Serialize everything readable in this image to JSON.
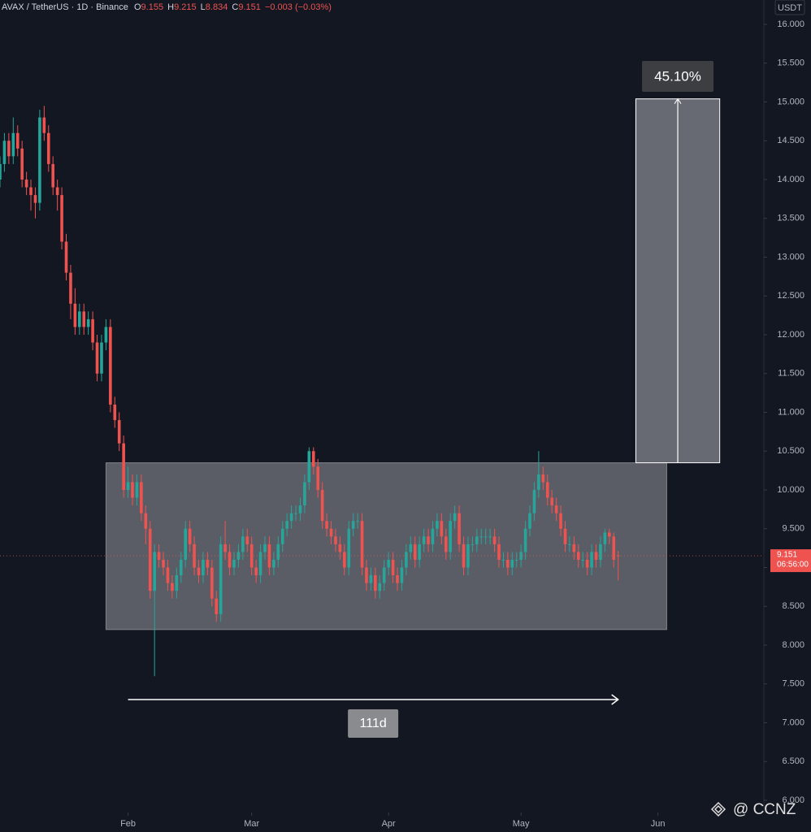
{
  "chart_data": {
    "type": "candlestick",
    "header": {
      "symbol": "AVAX / TetherUS · 1D · Binance",
      "prefixes": [
        "O",
        "H",
        "L",
        "C"
      ],
      "change": "−0.003 (−0.03%)"
    },
    "currency": "USDT",
    "countdown": "06:56:00",
    "watermark": "@ CCNZ",
    "up_color": "#26a69a",
    "down_color": "#ef5350",
    "xlim": [
      3,
      176
    ],
    "ylim": [
      6,
      16
    ],
    "xticks": [
      {
        "value": 32,
        "label": "Feb"
      },
      {
        "value": 60,
        "label": "Mar"
      },
      {
        "value": 91,
        "label": "Apr"
      },
      {
        "value": 121,
        "label": "May"
      },
      {
        "value": 152,
        "label": "Jun"
      }
    ],
    "yticks": [
      {
        "value": 6,
        "label": "6.000"
      },
      {
        "value": 6.5,
        "label": "6.500"
      },
      {
        "value": 7,
        "label": "7.000"
      },
      {
        "value": 7.5,
        "label": "7.500"
      },
      {
        "value": 8,
        "label": "8.000"
      },
      {
        "value": 8.5,
        "label": "8.500"
      },
      {
        "value": 9,
        "label": "9.000"
      },
      {
        "value": 9.5,
        "label": "9.500"
      },
      {
        "value": 10,
        "label": "10.000"
      },
      {
        "value": 10.5,
        "label": "10.500"
      },
      {
        "value": 11,
        "label": "11.000"
      },
      {
        "value": 11.5,
        "label": "11.500"
      },
      {
        "value": 12,
        "label": "12.000"
      },
      {
        "value": 12.5,
        "label": "12.500"
      },
      {
        "value": 13,
        "label": "13.000"
      },
      {
        "value": 13.5,
        "label": "13.500"
      },
      {
        "value": 14,
        "label": "14.000"
      },
      {
        "value": 14.5,
        "label": "14.500"
      },
      {
        "value": 15,
        "label": "15.000"
      },
      {
        "value": 15.5,
        "label": "15.500"
      },
      {
        "value": 16,
        "label": "16.000"
      }
    ],
    "x": [
      3,
      4,
      5,
      6,
      7,
      8,
      9,
      10,
      11,
      12,
      13,
      14,
      15,
      16,
      17,
      18,
      19,
      20,
      21,
      22,
      23,
      24,
      25,
      26,
      27,
      28,
      29,
      30,
      31,
      32,
      33,
      34,
      35,
      36,
      37,
      38,
      39,
      40,
      41,
      42,
      43,
      44,
      45,
      46,
      47,
      48,
      49,
      50,
      51,
      52,
      53,
      54,
      55,
      56,
      57,
      58,
      59,
      60,
      61,
      62,
      63,
      64,
      65,
      66,
      67,
      68,
      69,
      70,
      71,
      72,
      73,
      74,
      75,
      76,
      77,
      78,
      79,
      80,
      81,
      82,
      83,
      84,
      85,
      86,
      87,
      88,
      89,
      90,
      91,
      92,
      93,
      94,
      95,
      96,
      97,
      98,
      99,
      100,
      101,
      102,
      103,
      104,
      105,
      106,
      107,
      108,
      109,
      110,
      111,
      112,
      113,
      114,
      115,
      116,
      117,
      118,
      119,
      120,
      121,
      122,
      123,
      124,
      125,
      126,
      127,
      128,
      129,
      130,
      131,
      132,
      133,
      134,
      135,
      136,
      137,
      138,
      139,
      140,
      141,
      142,
      143
    ],
    "open": [
      14.0,
      14.2,
      14.5,
      14.3,
      14.6,
      14.4,
      14.0,
      13.9,
      13.8,
      13.7,
      14.8,
      14.6,
      14.2,
      13.9,
      13.8,
      13.2,
      12.8,
      12.4,
      12.1,
      12.3,
      12.1,
      12.2,
      11.9,
      11.5,
      11.9,
      12.1,
      11.1,
      10.9,
      10.6,
      10.0,
      10.1,
      9.9,
      10.1,
      9.7,
      9.5,
      8.7,
      9.2,
      9.1,
      9.0,
      8.8,
      8.7,
      8.9,
      9.1,
      9.5,
      9.3,
      9.0,
      8.9,
      9.1,
      9.0,
      8.6,
      8.4,
      9.3,
      9.2,
      9.0,
      9.1,
      9.2,
      9.4,
      9.3,
      9.0,
      8.9,
      9.2,
      9.3,
      9.0,
      9.1,
      9.3,
      9.5,
      9.6,
      9.7,
      9.7,
      9.8,
      10.1,
      10.5,
      10.3,
      10.0,
      9.6,
      9.5,
      9.4,
      9.3,
      9.2,
      9.0,
      9.5,
      9.6,
      9.6,
      9.0,
      8.8,
      8.9,
      8.7,
      8.8,
      9.0,
      9.1,
      8.9,
      8.8,
      9.0,
      9.2,
      9.3,
      9.1,
      9.3,
      9.4,
      9.3,
      9.5,
      9.6,
      9.4,
      9.2,
      9.6,
      9.7,
      9.3,
      9.0,
      9.3,
      9.3,
      9.4,
      9.4,
      9.4,
      9.4,
      9.3,
      9.1,
      9.1,
      9.0,
      9.1,
      9.1,
      9.2,
      9.5,
      9.7,
      10.0,
      10.2,
      10.1,
      9.9,
      9.8,
      9.7,
      9.5,
      9.3,
      9.3,
      9.2,
      9.1,
      9.1,
      9.0,
      9.2,
      9.1,
      9.3,
      9.45,
      9.4,
      9.155
    ],
    "high": [
      14.3,
      14.6,
      14.6,
      14.8,
      14.7,
      14.5,
      14.1,
      14.0,
      13.9,
      14.9,
      14.95,
      14.7,
      14.3,
      14.0,
      13.9,
      13.3,
      12.9,
      12.6,
      12.4,
      12.4,
      12.3,
      12.3,
      12.0,
      12.0,
      12.2,
      12.2,
      11.2,
      11.0,
      10.7,
      10.3,
      10.2,
      10.2,
      10.2,
      9.8,
      9.6,
      9.3,
      9.3,
      9.2,
      9.1,
      8.9,
      9.0,
      9.2,
      9.6,
      9.6,
      9.4,
      9.1,
      9.2,
      9.2,
      9.1,
      8.7,
      9.4,
      9.6,
      9.3,
      9.2,
      9.3,
      9.5,
      9.5,
      9.4,
      9.1,
      9.3,
      9.4,
      9.4,
      9.2,
      9.4,
      9.6,
      9.7,
      9.8,
      9.8,
      9.9,
      10.2,
      10.55,
      10.55,
      10.4,
      10.1,
      9.7,
      9.6,
      9.5,
      9.4,
      9.3,
      9.6,
      9.7,
      9.7,
      9.7,
      9.1,
      9.0,
      9.0,
      8.9,
      9.1,
      9.2,
      9.2,
      9.0,
      9.1,
      9.3,
      9.4,
      9.4,
      9.4,
      9.5,
      9.5,
      9.6,
      9.7,
      9.7,
      9.5,
      9.7,
      9.8,
      9.8,
      9.4,
      9.4,
      9.4,
      9.5,
      9.5,
      9.5,
      9.5,
      9.5,
      9.4,
      9.2,
      9.2,
      9.2,
      9.2,
      9.3,
      9.6,
      9.8,
      10.1,
      10.5,
      10.3,
      10.2,
      10.0,
      9.9,
      9.8,
      9.6,
      9.4,
      9.4,
      9.3,
      9.2,
      9.2,
      9.3,
      9.3,
      9.4,
      9.5,
      9.5,
      9.45,
      9.215
    ],
    "low": [
      13.9,
      14.1,
      14.2,
      14.2,
      14.3,
      13.9,
      13.8,
      13.6,
      13.5,
      13.6,
      14.5,
      14.1,
      13.8,
      13.6,
      13.1,
      12.7,
      12.2,
      12.0,
      12.0,
      12.0,
      12.0,
      11.8,
      11.4,
      11.4,
      11.8,
      11.0,
      10.8,
      10.5,
      9.9,
      9.9,
      9.8,
      9.8,
      9.6,
      9.3,
      8.6,
      7.6,
      9.0,
      8.9,
      8.7,
      8.6,
      8.6,
      8.8,
      9.0,
      9.2,
      8.9,
      8.8,
      8.8,
      8.9,
      8.5,
      8.3,
      8.3,
      9.1,
      8.9,
      8.9,
      9.0,
      9.1,
      9.2,
      8.9,
      8.8,
      8.8,
      9.1,
      8.9,
      8.9,
      9.0,
      9.2,
      9.4,
      9.5,
      9.6,
      9.6,
      9.7,
      10.0,
      10.2,
      9.9,
      9.5,
      9.4,
      9.3,
      9.2,
      9.1,
      8.9,
      8.9,
      9.4,
      9.5,
      8.9,
      8.7,
      8.7,
      8.6,
      8.6,
      8.7,
      8.9,
      8.8,
      8.7,
      8.7,
      8.9,
      9.1,
      9.0,
      9.0,
      9.2,
      9.2,
      9.2,
      9.4,
      9.3,
      9.1,
      9.1,
      9.5,
      9.2,
      8.9,
      8.9,
      9.2,
      9.2,
      9.3,
      9.3,
      9.3,
      9.2,
      9.0,
      9.0,
      8.9,
      8.9,
      9.0,
      9.0,
      9.1,
      9.4,
      9.6,
      9.9,
      10.0,
      9.8,
      9.7,
      9.6,
      9.4,
      9.2,
      9.2,
      9.1,
      9.0,
      9.0,
      8.9,
      8.9,
      9.0,
      9.0,
      9.2,
      9.3,
      9.0,
      8.834
    ],
    "close": [
      14.2,
      14.5,
      14.3,
      14.6,
      14.4,
      14.0,
      13.9,
      13.8,
      13.7,
      14.8,
      14.6,
      14.2,
      13.9,
      13.8,
      13.2,
      12.8,
      12.4,
      12.1,
      12.3,
      12.1,
      12.2,
      11.9,
      11.5,
      11.9,
      12.1,
      11.1,
      10.9,
      10.6,
      10.0,
      10.1,
      9.9,
      10.1,
      9.7,
      9.5,
      8.7,
      9.2,
      9.1,
      9.0,
      8.8,
      8.7,
      8.9,
      9.1,
      9.5,
      9.3,
      9.0,
      8.9,
      9.1,
      9.0,
      8.6,
      8.4,
      9.3,
      9.2,
      9.0,
      9.1,
      9.2,
      9.4,
      9.3,
      9.0,
      8.9,
      9.2,
      9.3,
      9.0,
      9.1,
      9.3,
      9.5,
      9.6,
      9.7,
      9.7,
      9.8,
      10.1,
      10.5,
      10.3,
      10.0,
      9.6,
      9.5,
      9.4,
      9.3,
      9.2,
      9.0,
      9.5,
      9.6,
      9.6,
      9.0,
      8.8,
      8.9,
      8.7,
      8.8,
      9.0,
      9.1,
      8.9,
      8.8,
      9.0,
      9.2,
      9.3,
      9.1,
      9.3,
      9.4,
      9.3,
      9.5,
      9.6,
      9.4,
      9.2,
      9.6,
      9.7,
      9.3,
      9.0,
      9.3,
      9.3,
      9.4,
      9.4,
      9.4,
      9.4,
      9.3,
      9.1,
      9.1,
      9.0,
      9.1,
      9.1,
      9.2,
      9.5,
      9.7,
      10.0,
      10.2,
      10.1,
      9.9,
      9.8,
      9.7,
      9.5,
      9.3,
      9.3,
      9.2,
      9.1,
      9.1,
      9.0,
      9.2,
      9.1,
      9.3,
      9.45,
      9.4,
      9.1,
      9.151
    ],
    "range_box": {
      "start": 27,
      "end": 154,
      "low": 8.2,
      "high": 10.35
    },
    "target_box": {
      "start": 147,
      "end": 166,
      "low": 10.35,
      "high": 15.04,
      "label": "45.10%"
    },
    "date_range": {
      "start": 32,
      "end": 143,
      "label": "111d"
    }
  }
}
